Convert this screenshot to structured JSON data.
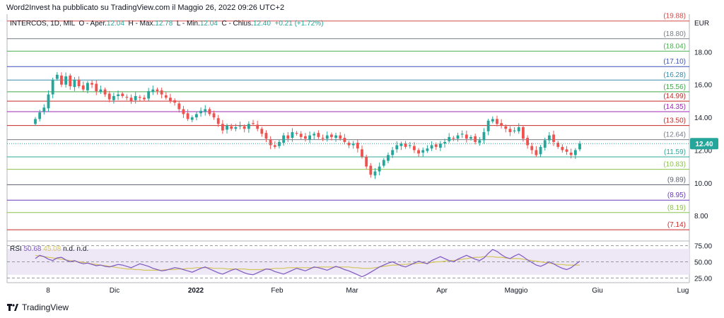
{
  "header": {
    "caption": "Word2Invest ha pubblicato su TradingView.com il Maggio 26, 2022 09:26 UTC+2"
  },
  "legend": {
    "symbol": "INTERCOS, 1D, MIL",
    "open_label": "O - Aper.",
    "open": "12.04",
    "high_label": "H - Max.",
    "high": "12.78",
    "low_label": "L - Min.",
    "low": "12.04",
    "close_label": "C - Chius.",
    "close": "12.40",
    "change": "+0.21 (+1.72%)"
  },
  "rsi_legend": {
    "name": "RSI",
    "value": "50.68",
    "ma": "45.08",
    "na1": "n.d.",
    "na2": "n.d."
  },
  "footer": {
    "brand": "TradingView"
  },
  "colors": {
    "up": "#26a69a",
    "down": "#ef5350",
    "rsi": "#7e57c2",
    "rsi_ma": "#d4c55a",
    "rsi_band": "#ede7f6"
  },
  "chart_data": {
    "type": "candlestick",
    "currency": "EUR",
    "last_price_label": "12.40",
    "y_ticks": [
      "8.00",
      "10.00",
      "12.00",
      "14.00",
      "16.00",
      "18.00"
    ],
    "y_range": [
      6.5,
      20.3
    ],
    "x_labels": [
      "8",
      "Dic",
      "2022",
      "Feb",
      "Mar",
      "Apr",
      "Maggio",
      "Giu",
      "Lug"
    ],
    "levels": [
      {
        "label": "(19.88)",
        "value": 19.88,
        "color": "#d14b4b"
      },
      {
        "label": "(18.80)",
        "value": 18.8,
        "color": "#787b86"
      },
      {
        "label": "(18.04)",
        "value": 18.04,
        "color": "#4caf50"
      },
      {
        "label": "(17.10)",
        "value": 17.1,
        "color": "#3f51b5"
      },
      {
        "label": "(16.28)",
        "value": 16.28,
        "color": "#3a8aa8"
      },
      {
        "label": "(15.56)",
        "value": 15.56,
        "color": "#3fa64a"
      },
      {
        "label": "(14.99)",
        "value": 14.99,
        "color": "#c62828"
      },
      {
        "label": "(14.35)",
        "value": 14.35,
        "color": "#9c27b0"
      },
      {
        "label": "(13.50)",
        "value": 13.5,
        "color": "#c62828"
      },
      {
        "label": "(12.64)",
        "value": 12.64,
        "color": "#787b86"
      },
      {
        "label": "(11.59)",
        "value": 11.59,
        "color": "#2ea89a"
      },
      {
        "label": "(10.83)",
        "value": 10.83,
        "color": "#8bc34a"
      },
      {
        "label": "(9.89)",
        "value": 9.89,
        "color": "#5d606b"
      },
      {
        "label": "(8.95)",
        "value": 8.95,
        "color": "#673ab7"
      },
      {
        "label": "(8.19)",
        "value": 8.19,
        "color": "#8bc34a"
      },
      {
        "label": "(7.14)",
        "value": 7.14,
        "color": "#c62828"
      }
    ],
    "closes": [
      13.9,
      14.3,
      14.6,
      15.4,
      16.3,
      16.6,
      16.0,
      16.5,
      15.9,
      16.3,
      15.9,
      15.7,
      16.1,
      16.0,
      15.6,
      15.7,
      15.4,
      15.1,
      15.3,
      15.4,
      15.3,
      15.2,
      15.0,
      15.3,
      15.2,
      15.1,
      15.6,
      15.7,
      15.6,
      15.4,
      15.2,
      15.0,
      14.9,
      14.5,
      14.2,
      13.9,
      14.0,
      14.2,
      14.4,
      14.5,
      14.2,
      14.0,
      13.6,
      13.2,
      13.5,
      13.3,
      13.4,
      13.5,
      13.3,
      13.6,
      13.6,
      13.3,
      13.0,
      12.7,
      12.3,
      12.2,
      12.5,
      12.9,
      12.7,
      13.1,
      13.0,
      12.8,
      12.7,
      12.9,
      13.0,
      12.8,
      12.7,
      12.9,
      12.8,
      12.9,
      12.7,
      12.5,
      12.3,
      12.4,
      12.1,
      11.6,
      11.0,
      10.5,
      10.7,
      11.0,
      11.4,
      11.7,
      12.0,
      12.3,
      12.4,
      12.2,
      12.3,
      12.0,
      11.8,
      12.0,
      12.1,
      12.3,
      12.2,
      12.4,
      12.5,
      12.8,
      12.7,
      12.9,
      13.0,
      12.7,
      12.8,
      12.5,
      12.6,
      13.1,
      13.8,
      13.9,
      13.6,
      13.5,
      13.3,
      13.1,
      13.2,
      13.4,
      12.7,
      12.3,
      12.0,
      11.7,
      12.2,
      12.6,
      12.9,
      12.5,
      12.2,
      12.0,
      11.9,
      11.7,
      12.0,
      12.4
    ],
    "rsi_axis": [
      75,
      50,
      25
    ],
    "rsi_axis_labels": [
      "75.00",
      "50.00",
      "25.00"
    ],
    "rsi_bands": [
      70,
      30
    ],
    "rsi": [
      55,
      60,
      58,
      54,
      52,
      56,
      57,
      53,
      50,
      52,
      49,
      47,
      48,
      46,
      44,
      45,
      43,
      42,
      44,
      46,
      45,
      43,
      41,
      44,
      47,
      45,
      43,
      40,
      38,
      36,
      37,
      39,
      41,
      40,
      38,
      36,
      34,
      37,
      40,
      42,
      39,
      36,
      33,
      31,
      34,
      37,
      39,
      36,
      33,
      31,
      30,
      33,
      36,
      39,
      38,
      35,
      33,
      31,
      34,
      37,
      40,
      38,
      36,
      39,
      42,
      41,
      39,
      37,
      40,
      43,
      41,
      38,
      36,
      33,
      30,
      27,
      30,
      34,
      38,
      42,
      45,
      48,
      50,
      47,
      44,
      42,
      45,
      48,
      51,
      49,
      47,
      52,
      55,
      58,
      55,
      52,
      50,
      54,
      57,
      60,
      57,
      54,
      52,
      56,
      63,
      69,
      66,
      61,
      57,
      55,
      59,
      62,
      58,
      53,
      49,
      45,
      43,
      46,
      50,
      47,
      43,
      40,
      38,
      41,
      46,
      51
    ],
    "rsi_ma": [
      60,
      59,
      58,
      57,
      56,
      55,
      54,
      53,
      52,
      51,
      50,
      49,
      48,
      47,
      46,
      45,
      44,
      43,
      42,
      41,
      40,
      39,
      39,
      38,
      38,
      37,
      37,
      37,
      37,
      37,
      38,
      38,
      38,
      39,
      39,
      40,
      40,
      41,
      41,
      41,
      41,
      40,
      40,
      40,
      39,
      39,
      39,
      39,
      39,
      38,
      38,
      38,
      38,
      39,
      39,
      40,
      40,
      40,
      41,
      41,
      41,
      41,
      41,
      41,
      41,
      42,
      42,
      42,
      42,
      42,
      42,
      42,
      42,
      41,
      41,
      40,
      40,
      40,
      41,
      42,
      43,
      44,
      45,
      45,
      46,
      46,
      47,
      47,
      48,
      48,
      48,
      49,
      50,
      50,
      51,
      52,
      52,
      53,
      54,
      55,
      56,
      57,
      57,
      58,
      58,
      58,
      57,
      57,
      56,
      55,
      55,
      55,
      54,
      53,
      52,
      51,
      50,
      49,
      48,
      47,
      46,
      46,
      45,
      45,
      45,
      45
    ]
  }
}
